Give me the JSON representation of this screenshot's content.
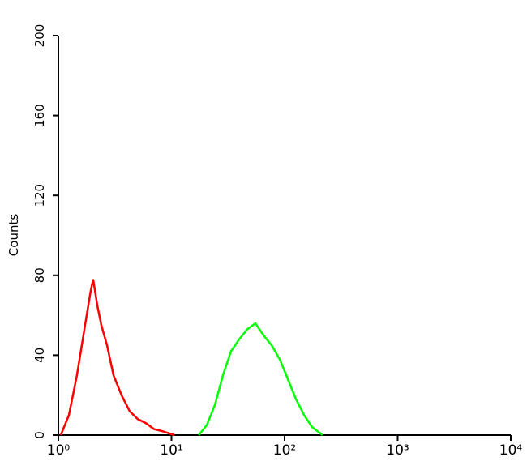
{
  "chart_data": {
    "type": "line",
    "y_label": "Counts",
    "xscale": "log",
    "xlim": [
      1,
      10000
    ],
    "xticks": [
      {
        "value": 1,
        "label": "10⁰"
      },
      {
        "value": 10,
        "label": "10¹"
      },
      {
        "value": 100,
        "label": "10²"
      },
      {
        "value": 1000,
        "label": "10³"
      },
      {
        "value": 10000,
        "label": "10⁴"
      }
    ],
    "ylim": [
      0,
      200
    ],
    "yticks": [
      0,
      40,
      80,
      120,
      160,
      200
    ],
    "series": [
      {
        "color": "#ff0000",
        "x": [
          1.05,
          1.24,
          1.46,
          1.72,
          1.93,
          2.03,
          2.21,
          2.4,
          2.69,
          3.07,
          3.62,
          4.27,
          5.04,
          5.94,
          7.01,
          8.27,
          10.6
        ],
        "values": [
          0,
          10,
          30,
          55,
          72,
          78,
          65,
          55,
          45,
          30,
          20,
          12,
          8,
          6,
          3,
          2,
          0
        ]
      },
      {
        "color": "#00ff00",
        "x": [
          17.4,
          20.5,
          24.2,
          28.5,
          33.6,
          39.7,
          46.8,
          55.2,
          65.1,
          76.8,
          90.6,
          107,
          126,
          149,
          175,
          217
        ],
        "values": [
          0,
          5,
          15,
          30,
          42,
          48,
          53,
          56,
          50,
          45,
          38,
          28,
          18,
          10,
          4,
          0
        ]
      }
    ]
  }
}
